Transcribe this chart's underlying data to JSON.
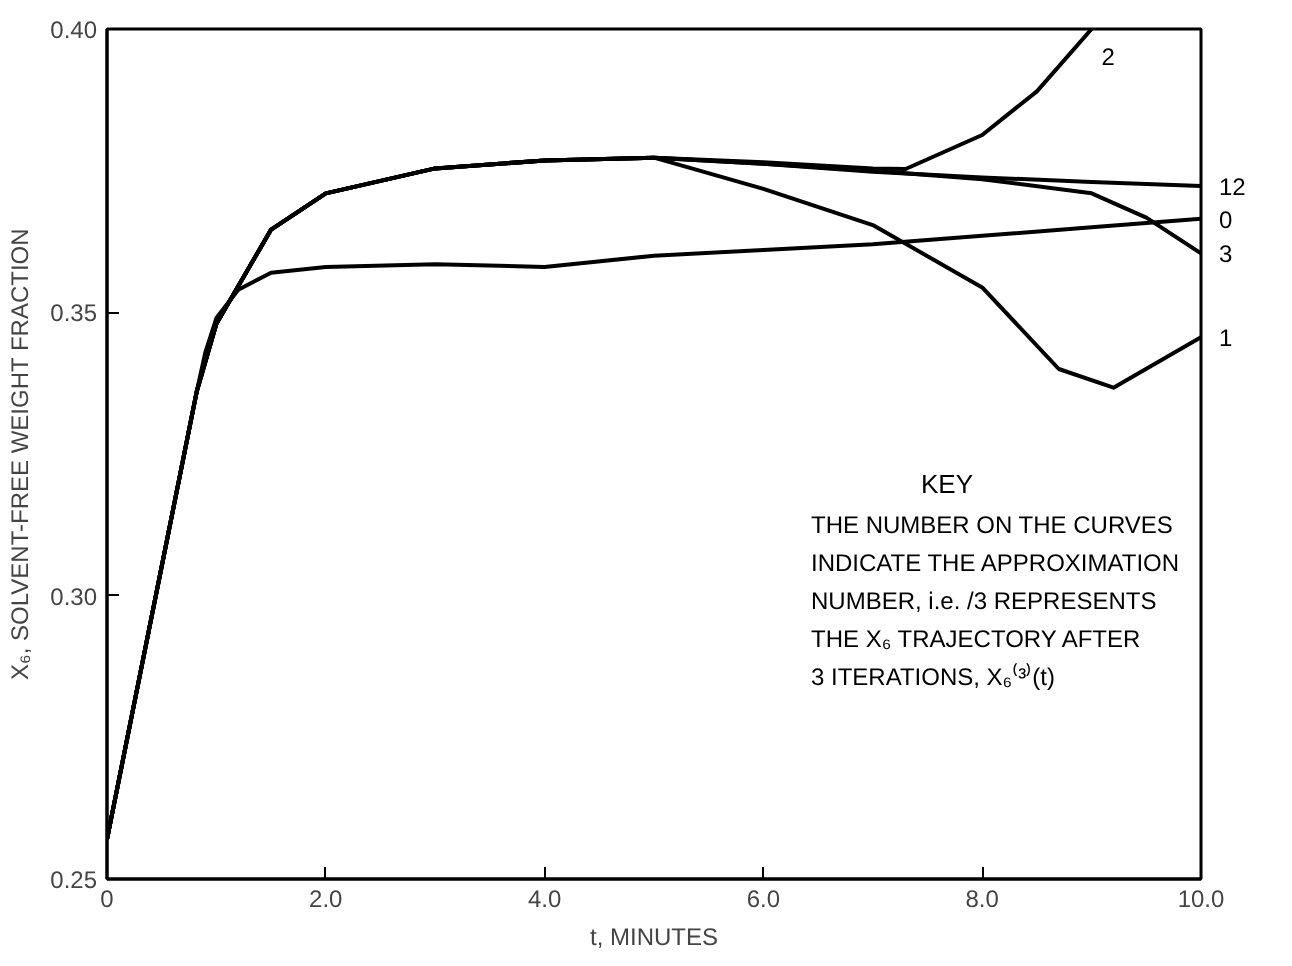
{
  "chart_data": {
    "type": "line",
    "xlabel": "t, MINUTES",
    "ylabel": "X₆, SOLVENT-FREE WEIGHT FRACTION",
    "xlim": [
      0,
      10
    ],
    "ylim": [
      0.25,
      0.4
    ],
    "xticks": [
      0,
      {
        "value": 2,
        "label": "2.0"
      },
      {
        "value": 4,
        "label": "4.0"
      },
      {
        "value": 6,
        "label": "6.0"
      },
      {
        "value": 8,
        "label": "8.0"
      },
      {
        "value": 10,
        "label": "10.0"
      }
    ],
    "yticks": [
      {
        "value": 0.25,
        "label": "0.25"
      },
      {
        "value": 0.3,
        "label": "0.30"
      },
      {
        "value": 0.35,
        "label": "0.35"
      },
      {
        "value": 0.4,
        "label": "0.40"
      }
    ],
    "grid": false,
    "marker": "none",
    "line_style": "solid",
    "annotations": [
      "KEY",
      "THE NUMBER ON THE CURVES",
      "INDICATE THE APPROXIMATION",
      "NUMBER, i.e. /3 REPRESENTS",
      "THE X₆ TRAJECTORY AFTER",
      "3 ITERATIONS, X₆⁽³⁾(t)"
    ],
    "series": [
      {
        "name": "0",
        "color": "#000000",
        "x": [
          0,
          0.82,
          0.9,
          1.0,
          1.2,
          1.5,
          2,
          3,
          4,
          5,
          6,
          7,
          8,
          9,
          10
        ],
        "values": [
          0.257,
          0.336,
          0.343,
          0.349,
          0.354,
          0.357,
          0.358,
          0.3585,
          0.358,
          0.36,
          0.361,
          0.362,
          0.3635,
          0.365,
          0.3665
        ]
      },
      {
        "name": "1",
        "color": "#000000",
        "x": [
          0,
          0.82,
          1.0,
          1.5,
          2,
          3,
          4,
          5,
          6,
          7,
          8,
          8.7,
          9.2,
          10
        ],
        "values": [
          0.257,
          0.336,
          0.348,
          0.3646,
          0.371,
          0.3754,
          0.3768,
          0.3773,
          0.3718,
          0.3654,
          0.3544,
          0.34,
          0.3367,
          0.3456
        ]
      },
      {
        "name": "2",
        "color": "#000000",
        "x": [
          0,
          0.82,
          1.0,
          1.5,
          2,
          3,
          4,
          5,
          6,
          7,
          7.3,
          8,
          8.5,
          9.0
        ],
        "values": [
          0.257,
          0.336,
          0.348,
          0.3646,
          0.371,
          0.3754,
          0.3768,
          0.3773,
          0.3765,
          0.3754,
          0.3753,
          0.3813,
          0.389,
          0.4
        ]
      },
      {
        "name": "3",
        "color": "#000000",
        "x": [
          0,
          0.82,
          1.0,
          1.5,
          2,
          3,
          4,
          5,
          6,
          7,
          8,
          9,
          9.5,
          10
        ],
        "values": [
          0.257,
          0.336,
          0.348,
          0.3646,
          0.371,
          0.3754,
          0.3768,
          0.3773,
          0.3762,
          0.375,
          0.3735,
          0.371,
          0.3667,
          0.3604
        ]
      },
      {
        "name": "12",
        "color": "#000000",
        "x": [
          0,
          0.82,
          1.0,
          1.5,
          2,
          3,
          4,
          5,
          6,
          7,
          8,
          9,
          10
        ],
        "values": [
          0.257,
          0.336,
          0.348,
          0.3646,
          0.371,
          0.3754,
          0.3768,
          0.3773,
          0.3762,
          0.3748,
          0.3738,
          0.373,
          0.3723
        ]
      }
    ]
  }
}
